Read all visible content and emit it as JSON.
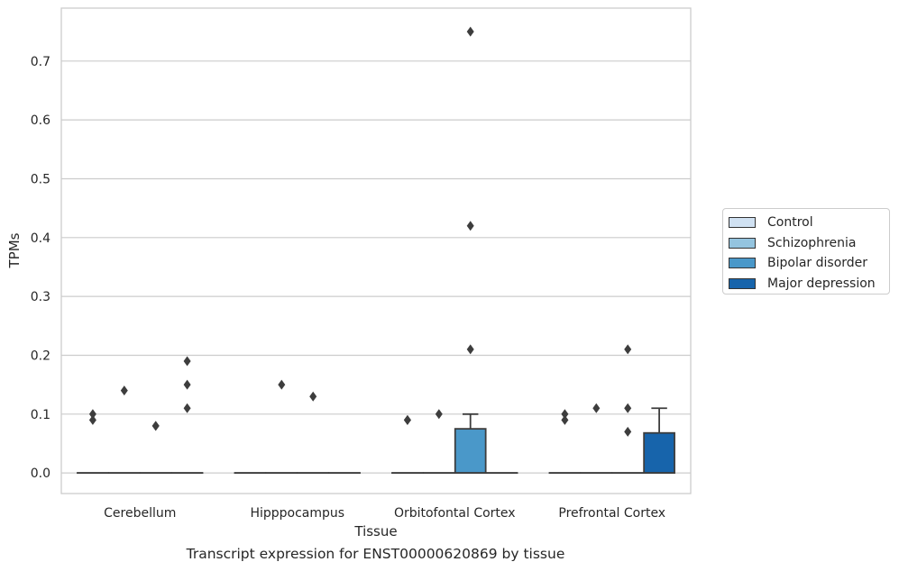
{
  "chart_data": {
    "type": "box",
    "xlabel": "Tissue",
    "ylabel": "TPMs",
    "caption": "Transcript expression for ENST00000620869 by tissue",
    "categories": [
      "Cerebellum",
      "Hipppocampus",
      "Orbitofontal Cortex",
      "Prefrontal Cortex"
    ],
    "ylim": [
      -0.035,
      0.79
    ],
    "yticks": [
      0.0,
      0.1,
      0.2,
      0.3,
      0.4,
      0.5,
      0.6,
      0.7
    ],
    "ytick_labels": [
      "0.0",
      "0.1",
      "0.2",
      "0.3",
      "0.4",
      "0.5",
      "0.6",
      "0.7"
    ],
    "grid": "horizontal",
    "legend_position": "right",
    "series": [
      {
        "name": "Control",
        "color": "#d0e1f2",
        "boxes": [
          {
            "q1": 0,
            "median": 0,
            "q3": 0,
            "whisker_low": 0,
            "whisker_high": 0,
            "outliers": [
              0.09,
              0.1
            ]
          },
          {
            "q1": 0,
            "median": 0,
            "q3": 0,
            "whisker_low": 0,
            "whisker_high": 0,
            "outliers": []
          },
          {
            "q1": 0,
            "median": 0,
            "q3": 0,
            "whisker_low": 0,
            "whisker_high": 0,
            "outliers": [
              0.09,
              0.09
            ]
          },
          {
            "q1": 0,
            "median": 0,
            "q3": 0,
            "whisker_low": 0,
            "whisker_high": 0,
            "outliers": [
              0.09,
              0.1
            ]
          }
        ]
      },
      {
        "name": "Schizophrenia",
        "color": "#94c4df",
        "boxes": [
          {
            "q1": 0,
            "median": 0,
            "q3": 0,
            "whisker_low": 0,
            "whisker_high": 0,
            "outliers": [
              0.14
            ]
          },
          {
            "q1": 0,
            "median": 0,
            "q3": 0,
            "whisker_low": 0,
            "whisker_high": 0,
            "outliers": [
              0.15
            ]
          },
          {
            "q1": 0,
            "median": 0,
            "q3": 0,
            "whisker_low": 0,
            "whisker_high": 0,
            "outliers": [
              0.1
            ]
          },
          {
            "q1": 0,
            "median": 0,
            "q3": 0,
            "whisker_low": 0,
            "whisker_high": 0,
            "outliers": [
              0.11
            ]
          }
        ]
      },
      {
        "name": "Bipolar disorder",
        "color": "#4a98c9",
        "boxes": [
          {
            "q1": 0,
            "median": 0,
            "q3": 0,
            "whisker_low": 0,
            "whisker_high": 0,
            "outliers": [
              0.08,
              0.08
            ]
          },
          {
            "q1": 0,
            "median": 0,
            "q3": 0,
            "whisker_low": 0,
            "whisker_high": 0,
            "outliers": [
              0.13
            ]
          },
          {
            "q1": 0,
            "median": 0,
            "q3": 0.075,
            "whisker_low": 0,
            "whisker_high": 0.1,
            "outliers": [
              0.21,
              0.42,
              0.75
            ]
          },
          {
            "q1": 0,
            "median": 0,
            "q3": 0,
            "whisker_low": 0,
            "whisker_high": 0,
            "outliers": [
              0.07,
              0.11,
              0.21
            ]
          }
        ]
      },
      {
        "name": "Major depression",
        "color": "#1764ab",
        "boxes": [
          {
            "q1": 0,
            "median": 0,
            "q3": 0,
            "whisker_low": 0,
            "whisker_high": 0,
            "outliers": [
              0.11,
              0.15,
              0.19
            ]
          },
          {
            "q1": 0,
            "median": 0,
            "q3": 0,
            "whisker_low": 0,
            "whisker_high": 0,
            "outliers": []
          },
          {
            "q1": 0,
            "median": 0,
            "q3": 0,
            "whisker_low": 0,
            "whisker_high": 0,
            "outliers": []
          },
          {
            "q1": 0,
            "median": 0,
            "q3": 0.068,
            "whisker_low": 0,
            "whisker_high": 0.11,
            "outliers": []
          }
        ]
      }
    ]
  }
}
